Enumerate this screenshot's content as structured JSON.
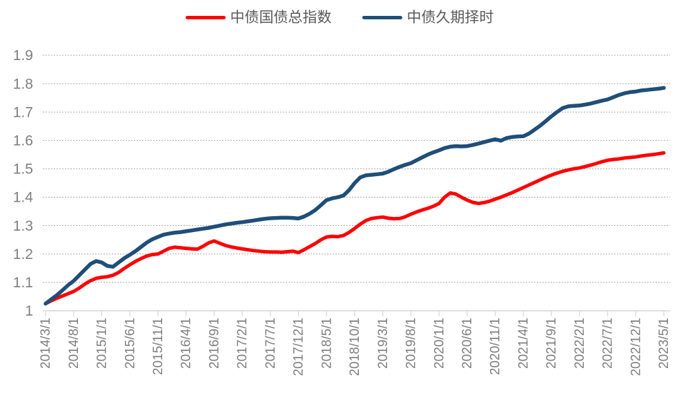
{
  "colors": {
    "background": "#FFFFFF",
    "grid": "#A6A6A6",
    "axis": "#D6D6D6",
    "axis_tick": "#D6D6D6",
    "axis_label_text": "#7F7F7F",
    "legend_text": "#595959",
    "series_red": "#FF0000",
    "series_blue": "#1F4E79"
  },
  "legend": {
    "position": "top-center",
    "items": [
      {
        "label": "中债国债总指数",
        "marker": "red-line-marker"
      },
      {
        "label": "中债久期择时",
        "marker": "blue-line-marker"
      }
    ]
  },
  "chart_data": {
    "type": "line",
    "title": "",
    "xlabel": "",
    "ylabel": "",
    "grid": "horizontal-dashed",
    "legend_position": "top",
    "y_axis": {
      "min": 1,
      "max": 1.9,
      "step": 0.1,
      "tick_labels": [
        "1",
        "1.1",
        "1.2",
        "1.3",
        "1.4",
        "1.5",
        "1.6",
        "1.7",
        "1.8",
        "1.9"
      ]
    },
    "x_axis": {
      "unit": "monthly dates, labeled every 5 months",
      "first_point": "2014/3/1",
      "last_point": "2023/5/1",
      "points_per_series": 111,
      "tick_labels": [
        "2014/3/1",
        "2014/8/1",
        "2015/1/1",
        "2015/6/1",
        "2015/11/1",
        "2016/4/1",
        "2016/9/1",
        "2017/2/1",
        "2017/7/1",
        "2017/12/1",
        "2018/5/1",
        "2018/10/1",
        "2019/3/1",
        "2019/8/1",
        "2020/1/1",
        "2020/6/1",
        "2020/11/1",
        "2021/4/1",
        "2021/9/1",
        "2022/2/1",
        "2022/7/1",
        "2022/12/1",
        "2023/5/1"
      ]
    },
    "series": [
      {
        "name": "中债国债总指数",
        "color": "#FF0000",
        "stroke_width": 5,
        "values": [
          1.025,
          1.035,
          1.044,
          1.052,
          1.06,
          1.068,
          1.08,
          1.094,
          1.106,
          1.114,
          1.118,
          1.12,
          1.125,
          1.135,
          1.149,
          1.162,
          1.174,
          1.184,
          1.193,
          1.198,
          1.2,
          1.21,
          1.22,
          1.224,
          1.222,
          1.22,
          1.218,
          1.217,
          1.227,
          1.239,
          1.246,
          1.238,
          1.23,
          1.225,
          1.221,
          1.218,
          1.215,
          1.212,
          1.21,
          1.208,
          1.207,
          1.207,
          1.206,
          1.208,
          1.21,
          1.205,
          1.215,
          1.226,
          1.237,
          1.25,
          1.26,
          1.262,
          1.261,
          1.265,
          1.276,
          1.29,
          1.305,
          1.318,
          1.325,
          1.328,
          1.33,
          1.326,
          1.324,
          1.325,
          1.331,
          1.34,
          1.348,
          1.355,
          1.361,
          1.368,
          1.378,
          1.4,
          1.415,
          1.411,
          1.4,
          1.39,
          1.382,
          1.378,
          1.381,
          1.386,
          1.393,
          1.4,
          1.408,
          1.416,
          1.425,
          1.434,
          1.443,
          1.452,
          1.461,
          1.47,
          1.478,
          1.485,
          1.491,
          1.496,
          1.5,
          1.503,
          1.508,
          1.513,
          1.519,
          1.525,
          1.53,
          1.533,
          1.535,
          1.538,
          1.54,
          1.542,
          1.545,
          1.548,
          1.55,
          1.553,
          1.556
        ]
      },
      {
        "name": "中债久期择时",
        "color": "#1F4E79",
        "stroke_width": 5.5,
        "values": [
          1.025,
          1.04,
          1.055,
          1.072,
          1.09,
          1.105,
          1.125,
          1.145,
          1.165,
          1.175,
          1.17,
          1.158,
          1.155,
          1.17,
          1.185,
          1.197,
          1.21,
          1.225,
          1.24,
          1.252,
          1.26,
          1.268,
          1.272,
          1.275,
          1.277,
          1.28,
          1.283,
          1.286,
          1.289,
          1.292,
          1.296,
          1.3,
          1.304,
          1.307,
          1.31,
          1.312,
          1.315,
          1.318,
          1.321,
          1.324,
          1.326,
          1.327,
          1.328,
          1.328,
          1.327,
          1.325,
          1.332,
          1.342,
          1.355,
          1.372,
          1.39,
          1.396,
          1.4,
          1.406,
          1.425,
          1.45,
          1.47,
          1.477,
          1.479,
          1.481,
          1.483,
          1.49,
          1.499,
          1.507,
          1.514,
          1.52,
          1.53,
          1.54,
          1.55,
          1.558,
          1.565,
          1.573,
          1.578,
          1.58,
          1.579,
          1.58,
          1.584,
          1.589,
          1.594,
          1.599,
          1.604,
          1.599,
          1.608,
          1.612,
          1.614,
          1.615,
          1.624,
          1.638,
          1.652,
          1.668,
          1.685,
          1.7,
          1.714,
          1.72,
          1.722,
          1.723,
          1.726,
          1.73,
          1.735,
          1.74,
          1.744,
          1.752,
          1.76,
          1.766,
          1.77,
          1.772,
          1.776,
          1.778,
          1.78,
          1.782,
          1.785
        ]
      }
    ]
  }
}
